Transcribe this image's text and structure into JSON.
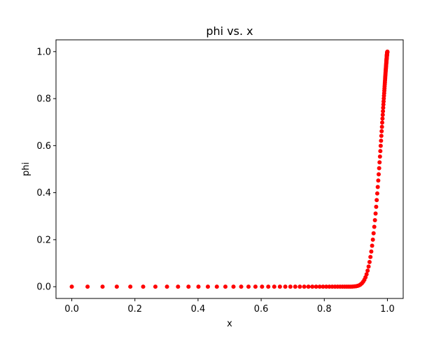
{
  "chart_data": {
    "type": "scatter",
    "title": "phi vs. x",
    "xlabel": "x",
    "ylabel": "phi",
    "xlim": [
      -0.05,
      1.05
    ],
    "ylim": [
      -0.05,
      1.05
    ],
    "xticks": [
      0.0,
      0.2,
      0.4,
      0.6,
      0.8,
      1.0
    ],
    "yticks": [
      0.0,
      0.2,
      0.4,
      0.6,
      0.8,
      1.0
    ],
    "x_tick_labels": [
      "0.0",
      "0.2",
      "0.4",
      "0.6",
      "0.8",
      "1.0"
    ],
    "y_tick_labels": [
      "0.0",
      "0.2",
      "0.4",
      "0.6",
      "0.8",
      "1.0"
    ],
    "grid": false,
    "marker_color": "#ff0000",
    "series": [
      {
        "x": [
          0.0,
          0.05,
          0.0975,
          0.1426,
          0.1855,
          0.2262,
          0.2649,
          0.3017,
          0.3366,
          0.3698,
          0.4013,
          0.4312,
          0.4596,
          0.4867,
          0.5123,
          0.5367,
          0.5599,
          0.5819,
          0.6028,
          0.6226,
          0.6415,
          0.6594,
          0.6765,
          0.6926,
          0.708,
          0.7226,
          0.7365,
          0.7497,
          0.7622,
          0.7741,
          0.7854,
          0.7961,
          0.8063,
          0.816,
          0.8252,
          0.8339,
          0.8422,
          0.8501,
          0.8576,
          0.8647,
          0.8715,
          0.8779,
          0.884,
          0.8898,
          0.8953,
          0.9006,
          0.9055,
          0.9103,
          0.9147,
          0.919,
          0.923,
          0.9269,
          0.9305,
          0.934,
          0.9373,
          0.9404,
          0.9434,
          0.9462,
          0.9489,
          0.9515,
          0.9539,
          0.9562,
          0.9584,
          0.9605,
          0.9625,
          0.9644,
          0.9661,
          0.9678,
          0.9694,
          0.971,
          0.9724,
          0.9738,
          0.9751,
          0.9764,
          0.9776,
          0.9787,
          0.9798,
          0.9808,
          0.9817,
          0.9827,
          0.9835,
          0.9844,
          0.9852,
          0.9859,
          0.9866,
          0.9873,
          0.9879,
          0.9885,
          0.9891,
          0.9897,
          0.9902,
          0.9907,
          0.9911,
          0.9916,
          0.992,
          0.9924,
          0.9928,
          0.9931,
          0.9935,
          0.9938,
          0.9941,
          0.9944,
          0.9947,
          0.995,
          0.9952,
          0.9955,
          0.9957,
          0.9959,
          0.9961,
          0.9963,
          0.9965,
          0.9967,
          0.9968,
          0.997,
          0.9971,
          0.9973,
          0.9974,
          0.9975,
          0.9977,
          0.9978,
          0.9979,
          0.998,
          0.9981,
          0.9982,
          0.9983,
          0.9983,
          0.9984,
          0.9985,
          0.9986,
          0.9986,
          0.9987,
          0.9988,
          0.9988,
          0.9989,
          0.9989,
          0.999,
          0.999,
          0.9991,
          0.9991,
          0.9992,
          0.9992,
          0.9992,
          0.9993,
          0.9993,
          0.9993,
          0.9994,
          0.9994,
          0.9994,
          0.9995,
          0.9995,
          1.0
        ],
        "y": [
          0.0,
          0.0,
          0.0,
          0.0,
          0.0,
          0.0,
          0.0,
          0.0,
          0.0,
          0.0,
          0.0,
          0.0,
          0.0,
          0.0,
          0.0,
          0.0,
          0.0,
          0.0,
          0.0,
          0.0,
          0.0,
          0.0,
          0.0,
          0.0,
          0.0,
          0.0,
          0.0,
          0.0,
          0.0,
          0.0,
          0.0,
          0.0,
          0.0,
          0.0,
          0.0,
          0.0,
          0.0,
          0.0,
          0.0,
          0.0,
          0.0001,
          0.0001,
          0.0003,
          0.0006,
          0.0011,
          0.002,
          0.0035,
          0.0059,
          0.0094,
          0.0142,
          0.0208,
          0.0293,
          0.04,
          0.0529,
          0.0681,
          0.0855,
          0.105,
          0.1265,
          0.1496,
          0.1743,
          0.2002,
          0.2271,
          0.2547,
          0.2829,
          0.3113,
          0.3399,
          0.3683,
          0.3965,
          0.4242,
          0.4515,
          0.4781,
          0.504,
          0.5291,
          0.5534,
          0.5768,
          0.5993,
          0.6208,
          0.6415,
          0.6612,
          0.68,
          0.6979,
          0.715,
          0.7312,
          0.7465,
          0.7611,
          0.7749,
          0.788,
          0.8004,
          0.8121,
          0.8231,
          0.8336,
          0.8435,
          0.8528,
          0.8616,
          0.8699,
          0.8777,
          0.8851,
          0.892,
          0.8986,
          0.9048,
          0.9106,
          0.9161,
          0.9213,
          0.9261,
          0.9307,
          0.935,
          0.9391,
          0.9429,
          0.9465,
          0.9499,
          0.953,
          0.956,
          0.9588,
          0.9615,
          0.964,
          0.9663,
          0.9685,
          0.9706,
          0.9725,
          0.9743,
          0.9761,
          0.9777,
          0.9792,
          0.9806,
          0.9819,
          0.9832,
          0.9843,
          0.9854,
          0.9865,
          0.9874,
          0.9883,
          0.9892,
          0.99,
          0.9907,
          0.9914,
          0.9921,
          0.9927,
          0.9933,
          0.9938,
          0.9943,
          0.9948,
          0.9952,
          0.9957,
          0.9961,
          0.9965,
          0.9968,
          0.9971,
          0.9975,
          0.9978,
          0.9981,
          1.0
        ]
      }
    ]
  }
}
